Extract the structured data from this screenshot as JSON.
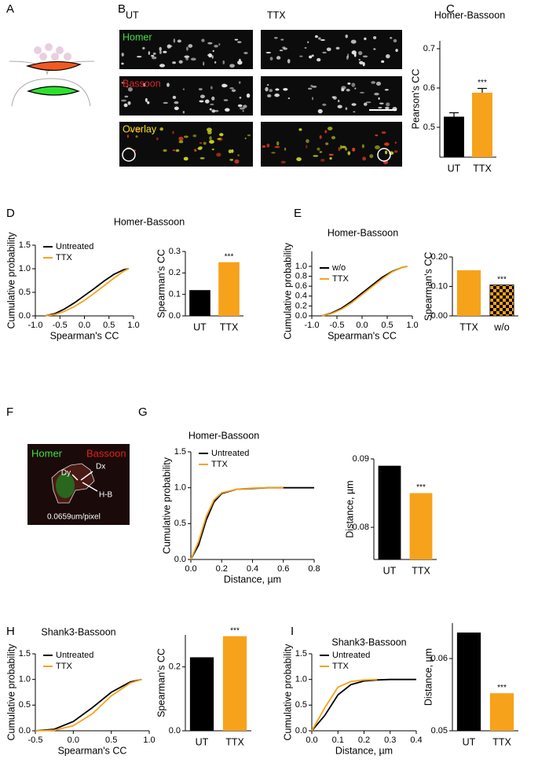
{
  "panels": [
    "A",
    "B",
    "C",
    "D",
    "E",
    "F",
    "G",
    "H",
    "I"
  ],
  "micrographs": {
    "columns": [
      "UT",
      "TTX"
    ],
    "rows": [
      "Homer",
      "Bassoon",
      "Overlay"
    ]
  },
  "inset": {
    "labels": [
      "Homer",
      "Bassoon",
      "Dy",
      "Dx",
      "H-B",
      "0.0659um/pixel"
    ]
  },
  "chart_data": [
    {
      "type": "bar",
      "title": "Homer-Bassoon",
      "ylabel": "Pearson's CC",
      "categories": [
        "UT",
        "TTX"
      ],
      "values": [
        0.527,
        0.588
      ],
      "errors": [
        0.01,
        0.011
      ],
      "colors": [
        "#000000",
        "#f7a21b"
      ],
      "ylim": [
        0.424,
        0.72
      ],
      "yticks": [
        0.5,
        0.6,
        0.7
      ],
      "annotation": "***"
    },
    {
      "type": "line",
      "title": "Homer-Bassoon",
      "xlabel": "Spearman's CC",
      "ylabel": "Cumulative probability",
      "x": [
        -0.8,
        -0.6,
        -0.4,
        -0.2,
        0,
        0.2,
        0.4,
        0.6,
        0.8,
        0.9
      ],
      "series": [
        {
          "name": "Untreated",
          "color": "#000000",
          "values": [
            0,
            0.05,
            0.15,
            0.28,
            0.43,
            0.58,
            0.74,
            0.88,
            0.98,
            1.0
          ]
        },
        {
          "name": "TTX",
          "color": "#f7a21b",
          "values": [
            0,
            0.03,
            0.1,
            0.2,
            0.33,
            0.48,
            0.64,
            0.8,
            0.95,
            1.0
          ]
        }
      ],
      "xlim": [
        -1,
        1
      ],
      "xticks": [
        {
          "value": -1,
          "label": "-1.0"
        },
        -0.5,
        {
          "value": 0,
          "label": "0.0"
        },
        0.5,
        {
          "value": 1,
          "label": "1.0"
        }
      ],
      "ylim": [
        0,
        1.5
      ],
      "yticks": [
        {
          "value": 0,
          "label": "0.0"
        },
        0.5,
        {
          "value": 1,
          "label": "1.0"
        },
        1.5
      ],
      "legend": "upper left"
    },
    {
      "type": "bar",
      "ylabel": "Spearman's CC",
      "categories": [
        "UT",
        "TTX"
      ],
      "values": [
        0.12,
        0.25
      ],
      "colors": [
        "#000000",
        "#f7a21b"
      ],
      "ylim": [
        0,
        0.3
      ],
      "yticks": [
        {
          "value": 0,
          "label": "0.0"
        },
        0.1,
        0.2,
        0.3
      ],
      "annotation": "***"
    },
    {
      "type": "line",
      "title": "Homer-Bassoon",
      "xlabel": "Spearman's CC",
      "ylabel": "Cumulative probability",
      "x": [
        -0.8,
        -0.6,
        -0.4,
        -0.2,
        0,
        0.2,
        0.4,
        0.6,
        0.8,
        0.9
      ],
      "series": [
        {
          "name": "w/o",
          "color": "#000000",
          "values": [
            0,
            0.06,
            0.16,
            0.3,
            0.46,
            0.62,
            0.78,
            0.9,
            0.98,
            1.0
          ]
        },
        {
          "name": "TTX",
          "color": "#f7a21b",
          "values": [
            0,
            0.05,
            0.14,
            0.27,
            0.43,
            0.59,
            0.75,
            0.89,
            0.98,
            1.0
          ]
        }
      ],
      "xlim": [
        -1,
        1
      ],
      "xticks": [
        {
          "value": -1,
          "label": "-1.0"
        },
        -0.5,
        {
          "value": 0,
          "label": "0.0"
        },
        0.5,
        {
          "value": 1,
          "label": "1.0"
        }
      ],
      "ylim": [
        0,
        1
      ],
      "yticks": [
        {
          "value": 0,
          "label": "0.0"
        },
        0.2,
        0.4,
        0.6,
        0.8,
        {
          "value": 1,
          "label": "1.0"
        }
      ],
      "legend": "upper left"
    },
    {
      "type": "bar",
      "ylabel": "Spearman's CC",
      "categories": [
        "TTX",
        "w/o"
      ],
      "values": [
        0.155,
        0.105
      ],
      "colors": [
        "#f7a21b",
        "#f7a21b"
      ],
      "hatch": [
        null,
        "checkerboard"
      ],
      "ylim": [
        0,
        0.2
      ],
      "yticks": [
        {
          "value": 0,
          "label": "0.00"
        },
        {
          "value": 0.1,
          "label": "0.10"
        },
        {
          "value": 0.2,
          "label": "0.20"
        }
      ],
      "annotation": "***"
    },
    {
      "type": "line",
      "title": "Homer-Bassoon",
      "xlabel": "Distance, µm",
      "ylabel": "Cumulative probability",
      "x": [
        0,
        0.05,
        0.1,
        0.15,
        0.2,
        0.3,
        0.4,
        0.5,
        0.6,
        0.7,
        0.8
      ],
      "series": [
        {
          "name": "Untreated",
          "color": "#000000",
          "values": [
            0,
            0.2,
            0.55,
            0.8,
            0.92,
            0.98,
            0.99,
            1,
            1,
            1,
            1
          ]
        },
        {
          "name": "TTX",
          "color": "#f7a21b",
          "values": [
            0,
            0.25,
            0.6,
            0.83,
            0.93,
            0.98,
            0.995,
            1,
            1,
            null,
            null
          ]
        }
      ],
      "xlim": [
        0,
        0.8
      ],
      "xticks": [
        {
          "value": 0,
          "label": "0.0"
        },
        0.2,
        0.4,
        0.6,
        0.8
      ],
      "ylim": [
        0,
        1.5
      ],
      "yticks": [
        {
          "value": 0,
          "label": "0.0"
        },
        0.5,
        {
          "value": 1,
          "label": "1.0"
        },
        1.5
      ],
      "legend": "upper left"
    },
    {
      "type": "bar",
      "ylabel": "Distance, µm",
      "categories": [
        "UT",
        "TTX"
      ],
      "values": [
        0.089,
        0.085
      ],
      "colors": [
        "#000000",
        "#f7a21b"
      ],
      "ylim": [
        0.0753,
        0.09
      ],
      "yticks": [
        0.08,
        0.09
      ],
      "annotation": "***"
    },
    {
      "type": "line",
      "title": "Shank3-Bassoon",
      "xlabel": "Spearman's CC",
      "ylabel": "Cumulative probability",
      "x": [
        -0.5,
        -0.25,
        0,
        0.25,
        0.5,
        0.75,
        0.9
      ],
      "series": [
        {
          "name": "Untreated",
          "color": "#000000",
          "values": [
            0,
            0.03,
            0.18,
            0.45,
            0.75,
            0.95,
            1.0
          ]
        },
        {
          "name": "TTX",
          "color": "#f7a21b",
          "values": [
            0,
            0.01,
            0.1,
            0.33,
            0.68,
            0.93,
            1.0
          ]
        }
      ],
      "xlim": [
        -0.5,
        1
      ],
      "xticks": [
        -0.5,
        {
          "value": 0,
          "label": "0.0"
        },
        0.5,
        {
          "value": 1,
          "label": "1.0"
        }
      ],
      "ylim": [
        0,
        1.5
      ],
      "yticks": [
        {
          "value": 0,
          "label": "0.0"
        },
        0.5,
        {
          "value": 1,
          "label": "1.0"
        },
        1.5
      ],
      "legend": "upper left"
    },
    {
      "type": "bar",
      "ylabel": "Spearman's CC",
      "categories": [
        "UT",
        "TTX"
      ],
      "values": [
        0.23,
        0.296
      ],
      "colors": [
        "#000000",
        "#f7a21b"
      ],
      "ylim": [
        0,
        0.3
      ],
      "yticks": [
        {
          "value": 0,
          "label": "0.0"
        },
        0.2
      ],
      "annotation": "***"
    },
    {
      "type": "line",
      "title": "Shank3-Bassoon",
      "xlabel": "Distance, µm",
      "ylabel": "Cumulative probability",
      "x": [
        0,
        0.05,
        0.1,
        0.15,
        0.2,
        0.25,
        0.3,
        0.35,
        0.4
      ],
      "series": [
        {
          "name": "Untreated",
          "color": "#000000",
          "values": [
            0,
            0.3,
            0.7,
            0.9,
            0.97,
            0.99,
            1,
            1,
            1
          ]
        },
        {
          "name": "TTX",
          "color": "#f7a21b",
          "values": [
            0,
            0.45,
            0.85,
            0.96,
            0.99,
            1,
            null,
            null,
            null
          ]
        }
      ],
      "xlim": [
        0,
        0.4
      ],
      "xticks": [
        {
          "value": 0,
          "label": "0.0"
        },
        0.1,
        0.2,
        0.3,
        0.4
      ],
      "ylim": [
        0,
        1.5
      ],
      "yticks": [
        {
          "value": 0,
          "label": "0.0"
        },
        0.5,
        {
          "value": 1,
          "label": "1.0"
        },
        1.5
      ],
      "legend": "upper left"
    },
    {
      "type": "bar",
      "ylabel": "Distance, µm",
      "categories": [
        "UT",
        "TTX"
      ],
      "values": [
        0.0636,
        0.0552
      ],
      "colors": [
        "#000000",
        "#f7a21b"
      ],
      "ylim": [
        0.05,
        0.0649
      ],
      "yticks": [
        0.05,
        0.06
      ],
      "annotation": "***"
    }
  ]
}
